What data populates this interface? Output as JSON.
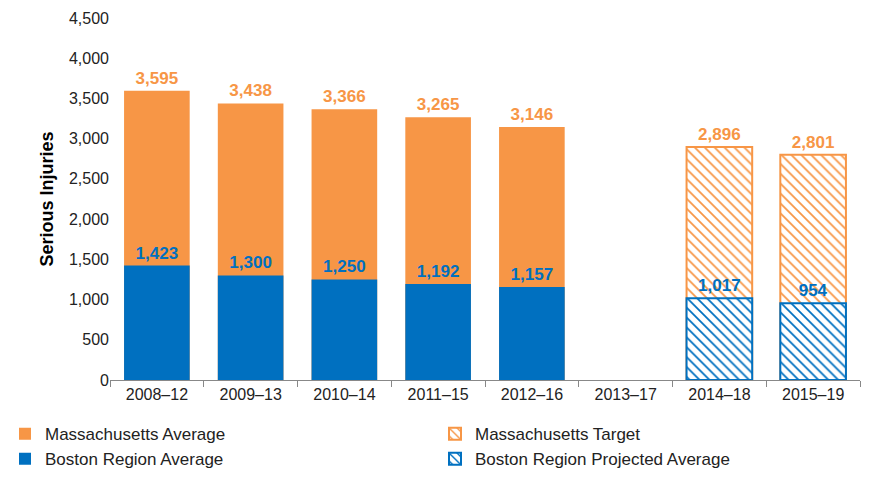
{
  "chart_data": {
    "type": "bar",
    "y_label": "Serious Injuries",
    "categories": [
      "2008–12",
      "2009–13",
      "2010–14",
      "2011–15",
      "2012–16",
      "2013–17",
      "2014–18",
      "2015–19"
    ],
    "series": [
      {
        "name": "Massachusetts Average",
        "color": "#F79646",
        "marker": "solid",
        "values": [
          3595,
          3438,
          3366,
          3265,
          3146,
          null,
          null,
          null
        ],
        "value_labels": [
          "3,595",
          "3,438",
          "3,366",
          "3,265",
          "3,146",
          null,
          null,
          null
        ]
      },
      {
        "name": "Massachusetts Target",
        "color": "#F79646",
        "marker": "hatched",
        "values": [
          null,
          null,
          null,
          null,
          null,
          null,
          2896,
          2801
        ],
        "value_labels": [
          null,
          null,
          null,
          null,
          null,
          null,
          "2,896",
          "2,801"
        ]
      },
      {
        "name": "Boston Region Average",
        "color": "#0070C0",
        "marker": "solid",
        "values": [
          1423,
          1300,
          1250,
          1192,
          1157,
          null,
          null,
          null
        ],
        "value_labels": [
          "1,423",
          "1,300",
          "1,250",
          "1,192",
          "1,157",
          null,
          null,
          null
        ]
      },
      {
        "name": "Boston Region Projected Average",
        "color": "#0070C0",
        "marker": "hatched",
        "values": [
          null,
          null,
          null,
          null,
          null,
          null,
          1017,
          954
        ],
        "value_labels": [
          null,
          null,
          null,
          null,
          null,
          null,
          "1,017",
          "954"
        ]
      }
    ],
    "ylim": [
      0,
      4500
    ],
    "yticks": [
      0,
      500,
      {
        "value": 1000,
        "label": "1,000"
      },
      {
        "value": 1500,
        "label": "1,500"
      },
      {
        "value": 2000,
        "label": "2,000"
      },
      {
        "value": 2500,
        "label": "2,500"
      },
      {
        "value": 3000,
        "label": "3,000"
      },
      {
        "value": 3500,
        "label": "3,500"
      },
      {
        "value": 4000,
        "label": "4,000"
      },
      {
        "value": 4500,
        "label": "4,500"
      }
    ],
    "grid": false,
    "stacked": false,
    "data_labels": true,
    "legend": "bottom"
  }
}
